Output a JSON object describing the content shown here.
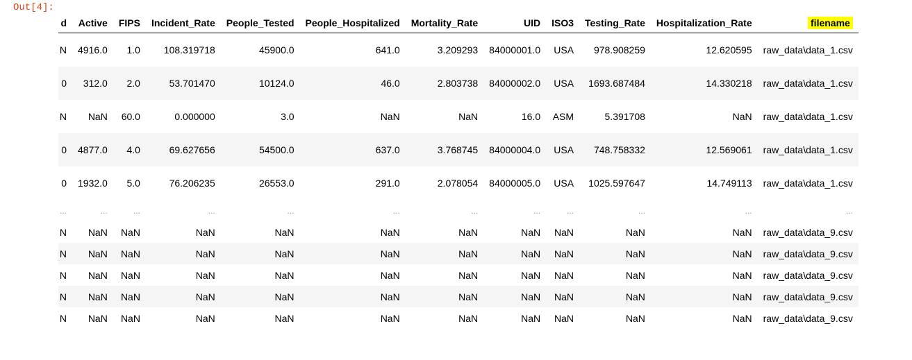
{
  "prompt": "Out[4]:",
  "dataframe": {
    "columns": [
      "d",
      "Active",
      "FIPS",
      "Incident_Rate",
      "People_Tested",
      "People_Hospitalized",
      "Mortality_Rate",
      "UID",
      "ISO3",
      "Testing_Rate",
      "Hospitalization_Rate",
      "filename"
    ],
    "highlighted_column": "filename",
    "rows": [
      [
        "N",
        "4916.0",
        "1.0",
        "108.319718",
        "45900.0",
        "641.0",
        "3.209293",
        "84000001.0",
        "USA",
        "978.908259",
        "12.620595",
        "raw_data\\data_1.csv"
      ],
      [
        "0",
        "312.0",
        "2.0",
        "53.701470",
        "10124.0",
        "46.0",
        "2.803738",
        "84000002.0",
        "USA",
        "1693.687484",
        "14.330218",
        "raw_data\\data_1.csv"
      ],
      [
        "N",
        "NaN",
        "60.0",
        "0.000000",
        "3.0",
        "NaN",
        "NaN",
        "16.0",
        "ASM",
        "5.391708",
        "NaN",
        "raw_data\\data_1.csv"
      ],
      [
        "0",
        "4877.0",
        "4.0",
        "69.627656",
        "54500.0",
        "637.0",
        "3.768745",
        "84000004.0",
        "USA",
        "748.758332",
        "12.569061",
        "raw_data\\data_1.csv"
      ],
      [
        "0",
        "1932.0",
        "5.0",
        "76.206235",
        "26553.0",
        "291.0",
        "2.078054",
        "84000005.0",
        "USA",
        "1025.597647",
        "14.749113",
        "raw_data\\data_1.csv"
      ]
    ],
    "ellipsis": "...",
    "tail_rows": [
      [
        "N",
        "NaN",
        "NaN",
        "NaN",
        "NaN",
        "NaN",
        "NaN",
        "NaN",
        "NaN",
        "NaN",
        "NaN",
        "raw_data\\data_9.csv"
      ],
      [
        "N",
        "NaN",
        "NaN",
        "NaN",
        "NaN",
        "NaN",
        "NaN",
        "NaN",
        "NaN",
        "NaN",
        "NaN",
        "raw_data\\data_9.csv"
      ],
      [
        "N",
        "NaN",
        "NaN",
        "NaN",
        "NaN",
        "NaN",
        "NaN",
        "NaN",
        "NaN",
        "NaN",
        "NaN",
        "raw_data\\data_9.csv"
      ],
      [
        "N",
        "NaN",
        "NaN",
        "NaN",
        "NaN",
        "NaN",
        "NaN",
        "NaN",
        "NaN",
        "NaN",
        "NaN",
        "raw_data\\data_9.csv"
      ],
      [
        "N",
        "NaN",
        "NaN",
        "NaN",
        "NaN",
        "NaN",
        "NaN",
        "NaN",
        "NaN",
        "NaN",
        "NaN",
        "raw_data\\data_9.csv"
      ]
    ]
  },
  "colors": {
    "prompt": "#d84315",
    "highlight": "#ffff00",
    "stripe": "#f5f5f5"
  }
}
